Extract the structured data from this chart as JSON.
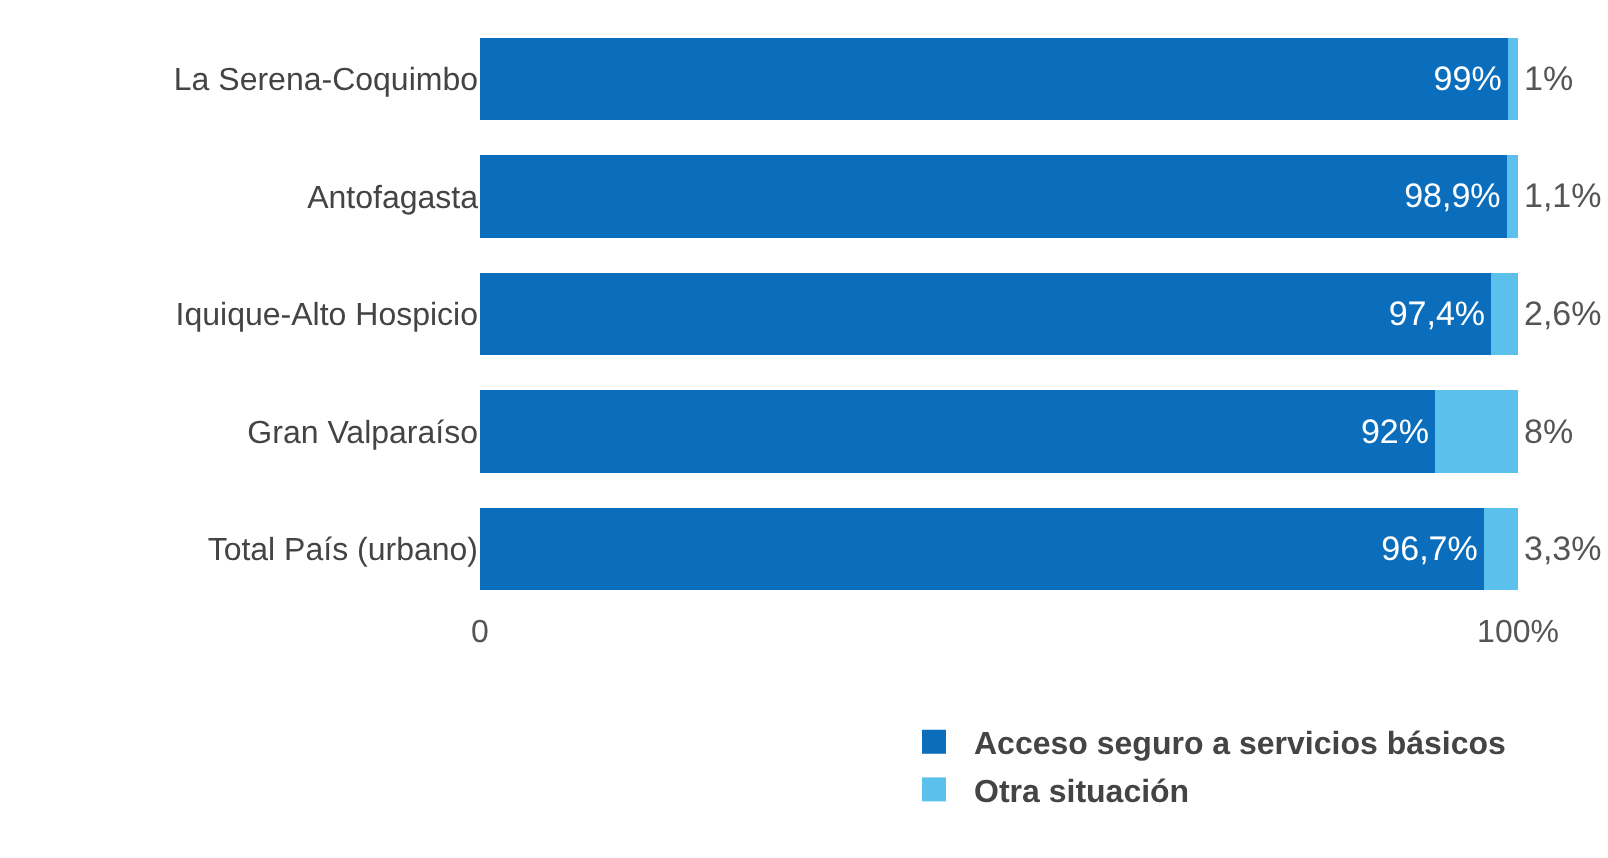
{
  "chart_data": {
    "type": "bar",
    "orientation": "horizontal",
    "stacked": true,
    "categories": [
      "La Serena-Coquimbo",
      "Antofagasta",
      "Iquique-Alto Hospicio",
      "Gran Valparaíso",
      "Total País (urbano)"
    ],
    "series": [
      {
        "name": "Acceso seguro a servicios básicos",
        "color": "#0a6ebd",
        "values": [
          99,
          98.9,
          97.4,
          92,
          96.7
        ],
        "value_labels": [
          "99%",
          "98,9%",
          "97,4%",
          "92%",
          "96,7%"
        ]
      },
      {
        "name": "Otra situación",
        "color": "#5bc0eb",
        "values": [
          1,
          1.1,
          2.6,
          8,
          3.3
        ],
        "value_labels": [
          "1%",
          "1,1%",
          "2,6%",
          "8%",
          "3,3%"
        ]
      }
    ],
    "xlim": [
      0,
      100
    ],
    "xticks": [
      0,
      {
        "value": 100,
        "label": "100%"
      }
    ],
    "legend": "bottom right"
  }
}
